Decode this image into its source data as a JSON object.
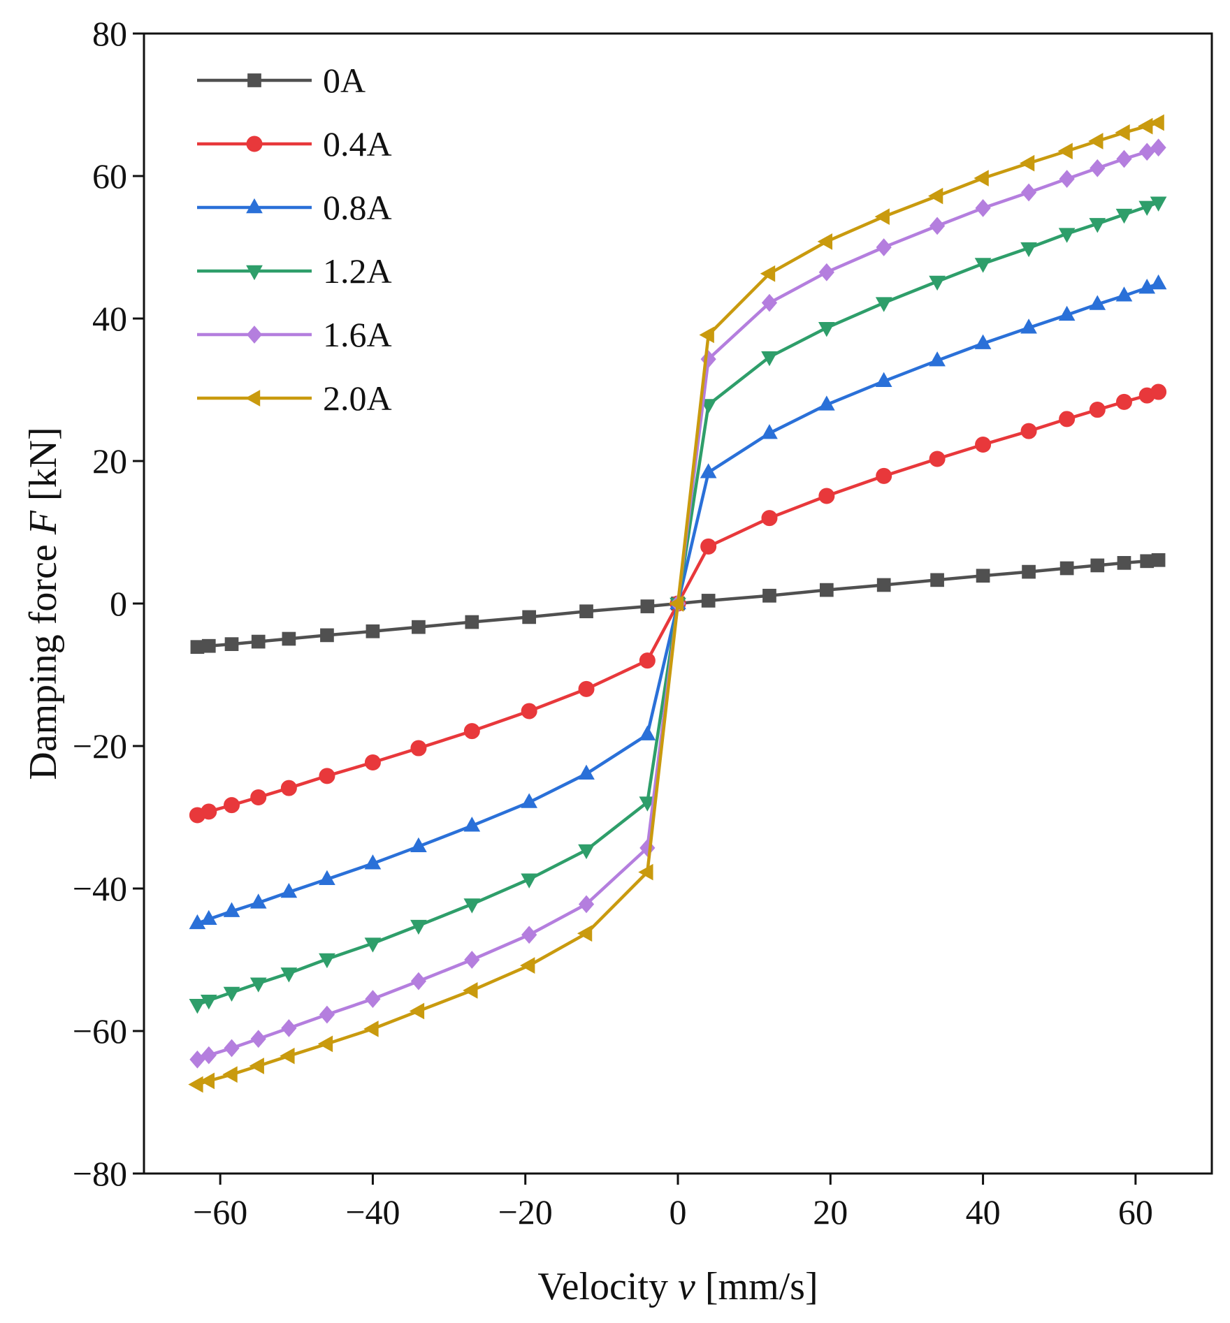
{
  "chart_data": {
    "type": "line",
    "xlabel": {
      "prefix": "Velocity ",
      "symbol": "v",
      "suffix": " [mm/s]"
    },
    "ylabel": {
      "prefix": "Damping force ",
      "symbol": "F",
      "suffix": " [kN]"
    },
    "xlim": [
      -70,
      70
    ],
    "ylim": [
      -80,
      80
    ],
    "xticks": [
      -60,
      -40,
      -20,
      0,
      20,
      40,
      60
    ],
    "xtick_labels": [
      "−60",
      "−40",
      "−20",
      "0",
      "20",
      "40",
      "60"
    ],
    "yticks": [
      -80,
      -60,
      -40,
      -20,
      0,
      20,
      40,
      60,
      80
    ],
    "ytick_labels": [
      "−80",
      "−60",
      "−40",
      "−20",
      "0",
      "20",
      "40",
      "60",
      "80"
    ],
    "grid": false,
    "legend_position": "top-left",
    "x": [
      -63,
      -61.5,
      -58.5,
      -55,
      -51,
      -46,
      -40,
      -34,
      -27,
      -19.5,
      -12,
      -4,
      0,
      4,
      12,
      19.5,
      27,
      34,
      40,
      46,
      51,
      55,
      58.5,
      61.5,
      63
    ],
    "series": [
      {
        "name": "0A",
        "color": "#505050",
        "marker": "square",
        "values": [
          -6.1,
          -5.95,
          -5.7,
          -5.35,
          -4.95,
          -4.45,
          -3.9,
          -3.3,
          -2.6,
          -1.9,
          -1.1,
          -0.4,
          0,
          0.4,
          1.1,
          1.9,
          2.6,
          3.3,
          3.9,
          4.45,
          4.95,
          5.35,
          5.7,
          5.95,
          6.1
        ]
      },
      {
        "name": "0.4A",
        "color": "#e8383b",
        "marker": "circle",
        "values": [
          -29.7,
          -29.2,
          -28.3,
          -27.2,
          -25.9,
          -24.2,
          -22.3,
          -20.3,
          -17.9,
          -15.1,
          -12.0,
          -8.0,
          0,
          8.0,
          12.0,
          15.1,
          17.9,
          20.3,
          22.3,
          24.2,
          25.9,
          27.2,
          28.3,
          29.2,
          29.7
        ]
      },
      {
        "name": "0.8A",
        "color": "#2a70d8",
        "marker": "triangle-up",
        "values": [
          -44.9,
          -44.3,
          -43.2,
          -42.0,
          -40.5,
          -38.7,
          -36.5,
          -34.1,
          -31.2,
          -27.9,
          -23.9,
          -18.4,
          0,
          18.4,
          23.9,
          27.9,
          31.2,
          34.1,
          36.5,
          38.7,
          40.5,
          42.0,
          43.2,
          44.3,
          44.9
        ]
      },
      {
        "name": "1.2A",
        "color": "#2e9e6a",
        "marker": "triangle-down",
        "values": [
          -56.3,
          -55.7,
          -54.6,
          -53.3,
          -51.9,
          -49.9,
          -47.7,
          -45.2,
          -42.2,
          -38.7,
          -34.6,
          -27.9,
          0,
          27.9,
          34.6,
          38.7,
          42.2,
          45.2,
          47.7,
          49.9,
          51.9,
          53.3,
          54.6,
          55.7,
          56.3
        ]
      },
      {
        "name": "1.6A",
        "color": "#b47ede",
        "marker": "diamond",
        "values": [
          -64.0,
          -63.4,
          -62.4,
          -61.1,
          -59.6,
          -57.7,
          -55.5,
          -53.0,
          -50.0,
          -46.5,
          -42.2,
          -34.3,
          0,
          34.3,
          42.2,
          46.5,
          50.0,
          53.0,
          55.5,
          57.7,
          59.6,
          61.1,
          62.4,
          63.4,
          64.0
        ]
      },
      {
        "name": "2.0A",
        "color": "#c99a0e",
        "marker": "triangle-left",
        "values": [
          -67.5,
          -67.0,
          -66.1,
          -64.9,
          -63.5,
          -61.8,
          -59.7,
          -57.2,
          -54.3,
          -50.8,
          -46.3,
          -37.7,
          0,
          37.7,
          46.3,
          50.8,
          54.3,
          57.2,
          59.7,
          61.8,
          63.5,
          64.9,
          66.1,
          67.0,
          67.5
        ]
      }
    ]
  }
}
